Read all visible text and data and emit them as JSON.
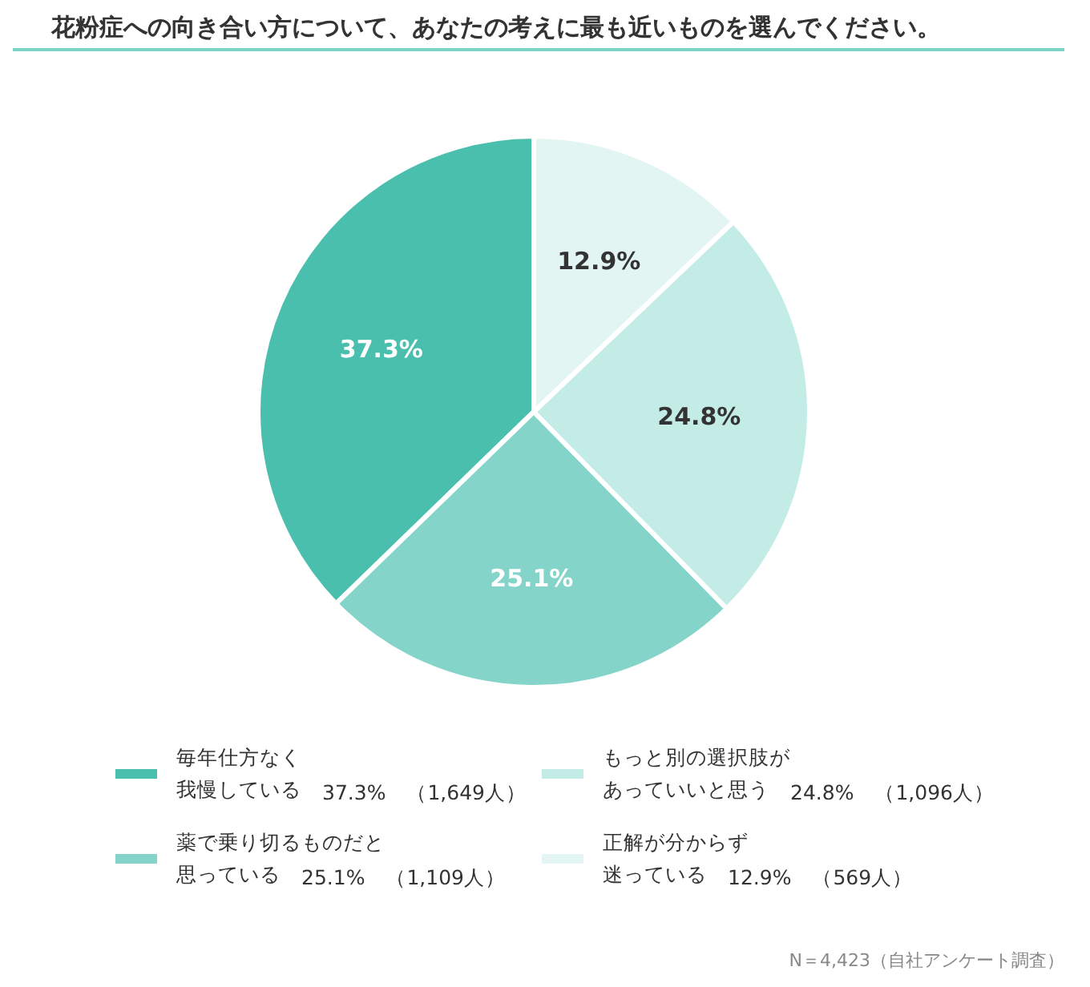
{
  "chart_data": {
    "type": "pie",
    "title": "花粉症への向き合い方について、あなたの考えに最も近いものを選んでください。",
    "categories": [
      "毎年仕方なく我慢している　37.3%　（1,649人）",
      "薬で乗り切るものだと思っている　25.1%　（1,109人）",
      "もっと別の選択肢があっていいと思う　24.8%　（1,096人）",
      "正解が分からず迷っている　12.9%　（569人）"
    ],
    "values": [
      37.3,
      25.1,
      24.8,
      12.9
    ],
    "colors": [
      "#4bbfad",
      "#84d4c9",
      "#c3ece7",
      "#e2f5f2"
    ],
    "value_labels": [
      "37.3%",
      "25.1%",
      "24.8%",
      "12.9%"
    ],
    "legend": "bottom",
    "annotations": [
      "N＝4,423（自社アンケート調査）"
    ]
  }
}
